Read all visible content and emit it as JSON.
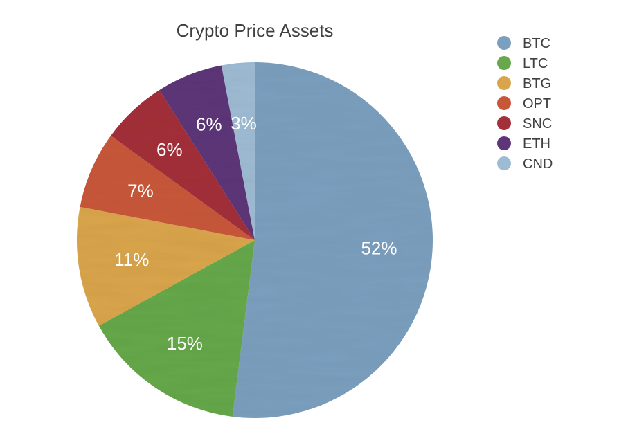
{
  "chart_data": {
    "type": "pie",
    "title": "Crypto Price Assets",
    "start_angle_deg": 0,
    "direction": "clockwise",
    "legend_position": "top-right",
    "slices": [
      {
        "label": "BTC",
        "value": 52,
        "display": "52%",
        "color": "#7b9fbe"
      },
      {
        "label": "LTC",
        "value": 15,
        "display": "15%",
        "color": "#66a84a"
      },
      {
        "label": "BTG",
        "value": 11,
        "display": "11%",
        "color": "#d9a54c"
      },
      {
        "label": "OPT",
        "value": 7,
        "display": "7%",
        "color": "#c8573a"
      },
      {
        "label": "SNC",
        "value": 6,
        "display": "6%",
        "color": "#a32f38"
      },
      {
        "label": "ETH",
        "value": 6,
        "display": "6%",
        "color": "#5d3578"
      },
      {
        "label": "CND",
        "value": 3,
        "display": "3%",
        "color": "#9dbbd3"
      }
    ]
  }
}
